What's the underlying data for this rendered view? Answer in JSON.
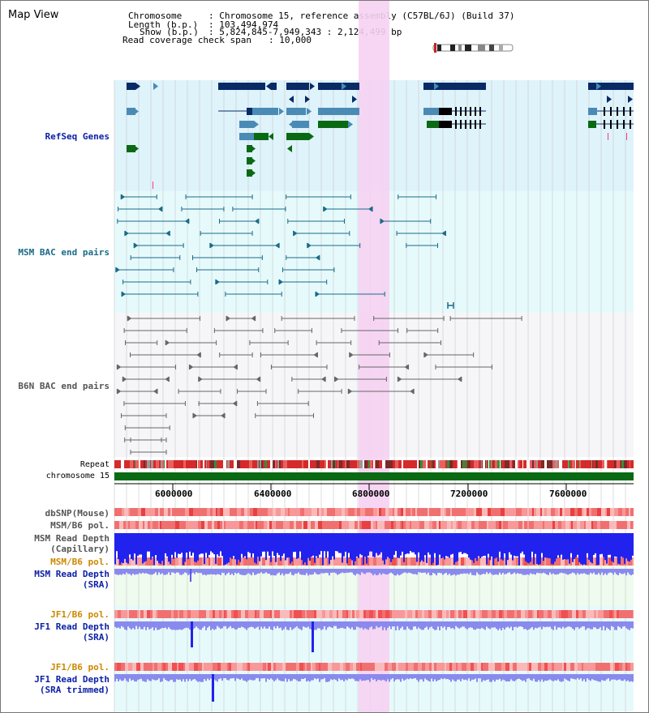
{
  "view": {
    "title": "Map View",
    "header": {
      "chromosome_label": "Chromosome",
      "chromosome_value": ": Chromosome 15, reference assembly (C57BL/6J) (Build 37)",
      "length_label": "Length (b.p.)",
      "length_value": ": 103,494,974",
      "show_label": "Show (b.p.)",
      "show_value": ": 5,824,845-7,949,343 : 2,124,499 bp",
      "coverage_label": "Read coverage check span",
      "coverage_value": ": 10,000"
    }
  },
  "tracks": {
    "refseq": "RefSeq Genes",
    "msm_bac": "MSM BAC end pairs",
    "b6n_bac": "B6N BAC end pairs",
    "repeat": "Repeat",
    "chromosome": "chromosome 15",
    "dbsnp": "dbSNP(Mouse)",
    "msm_b6_pol_1": "MSM/B6 pol.",
    "msm_read_depth_cap_1": "MSM Read Depth",
    "msm_read_depth_cap_2": "(Capillary)",
    "msm_b6_pol_2": "MSM/B6 pol.",
    "msm_read_depth_sra_1": "MSM Read Depth",
    "msm_read_depth_sra_2": "(SRA)",
    "jf1_b6_pol_1": "JF1/B6 pol.",
    "jf1_read_depth_sra_1": "JF1 Read Depth",
    "jf1_read_depth_sra_2": "(SRA)",
    "jf1_b6_pol_2": "JF1/B6 pol.",
    "jf1_read_depth_trim_1": "JF1 Read Depth",
    "jf1_read_depth_trim_2": "(SRA trimmed)"
  },
  "axis": {
    "ticks": [
      "6000000",
      "6400000",
      "6800000",
      "7200000",
      "7600000"
    ]
  },
  "colors": {
    "refseq_bg": "#dff3fb",
    "msm_bg": "#e6fafc",
    "b6n_bg": "#f6f6f8",
    "highlight": "#f6d2f2",
    "navy": "#0a2a66",
    "steel": "#4a8bb6",
    "green": "#0a6a14",
    "teal": "#1a6a88",
    "gray": "#666666",
    "blue_label": "#0a1fa6",
    "orange_label": "#cc8800",
    "depth_blue": "#2222ee",
    "depth_light": "#8a8aee",
    "pol_red": "#f05050"
  }
}
